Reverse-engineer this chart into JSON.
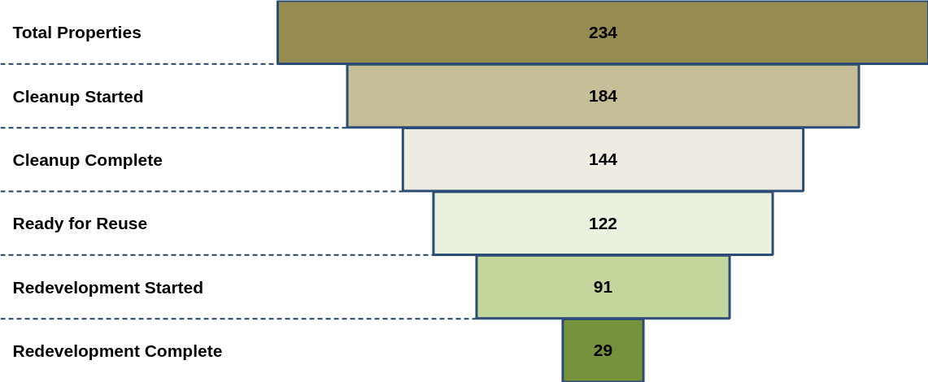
{
  "chart_data": {
    "type": "other",
    "categories": [
      "Total Properties",
      "Cleanup Started",
      "Cleanup Complete",
      "Ready for Reuse",
      "Redevelopment Started",
      "Redevelopment Complete"
    ],
    "values": [
      234,
      184,
      144,
      122,
      91,
      29
    ],
    "colors": [
      "#968c52",
      "#c5be97",
      "#eeece1",
      "#ebf1de",
      "#c3d69b",
      "#76923c"
    ],
    "data_labels": true
  }
}
